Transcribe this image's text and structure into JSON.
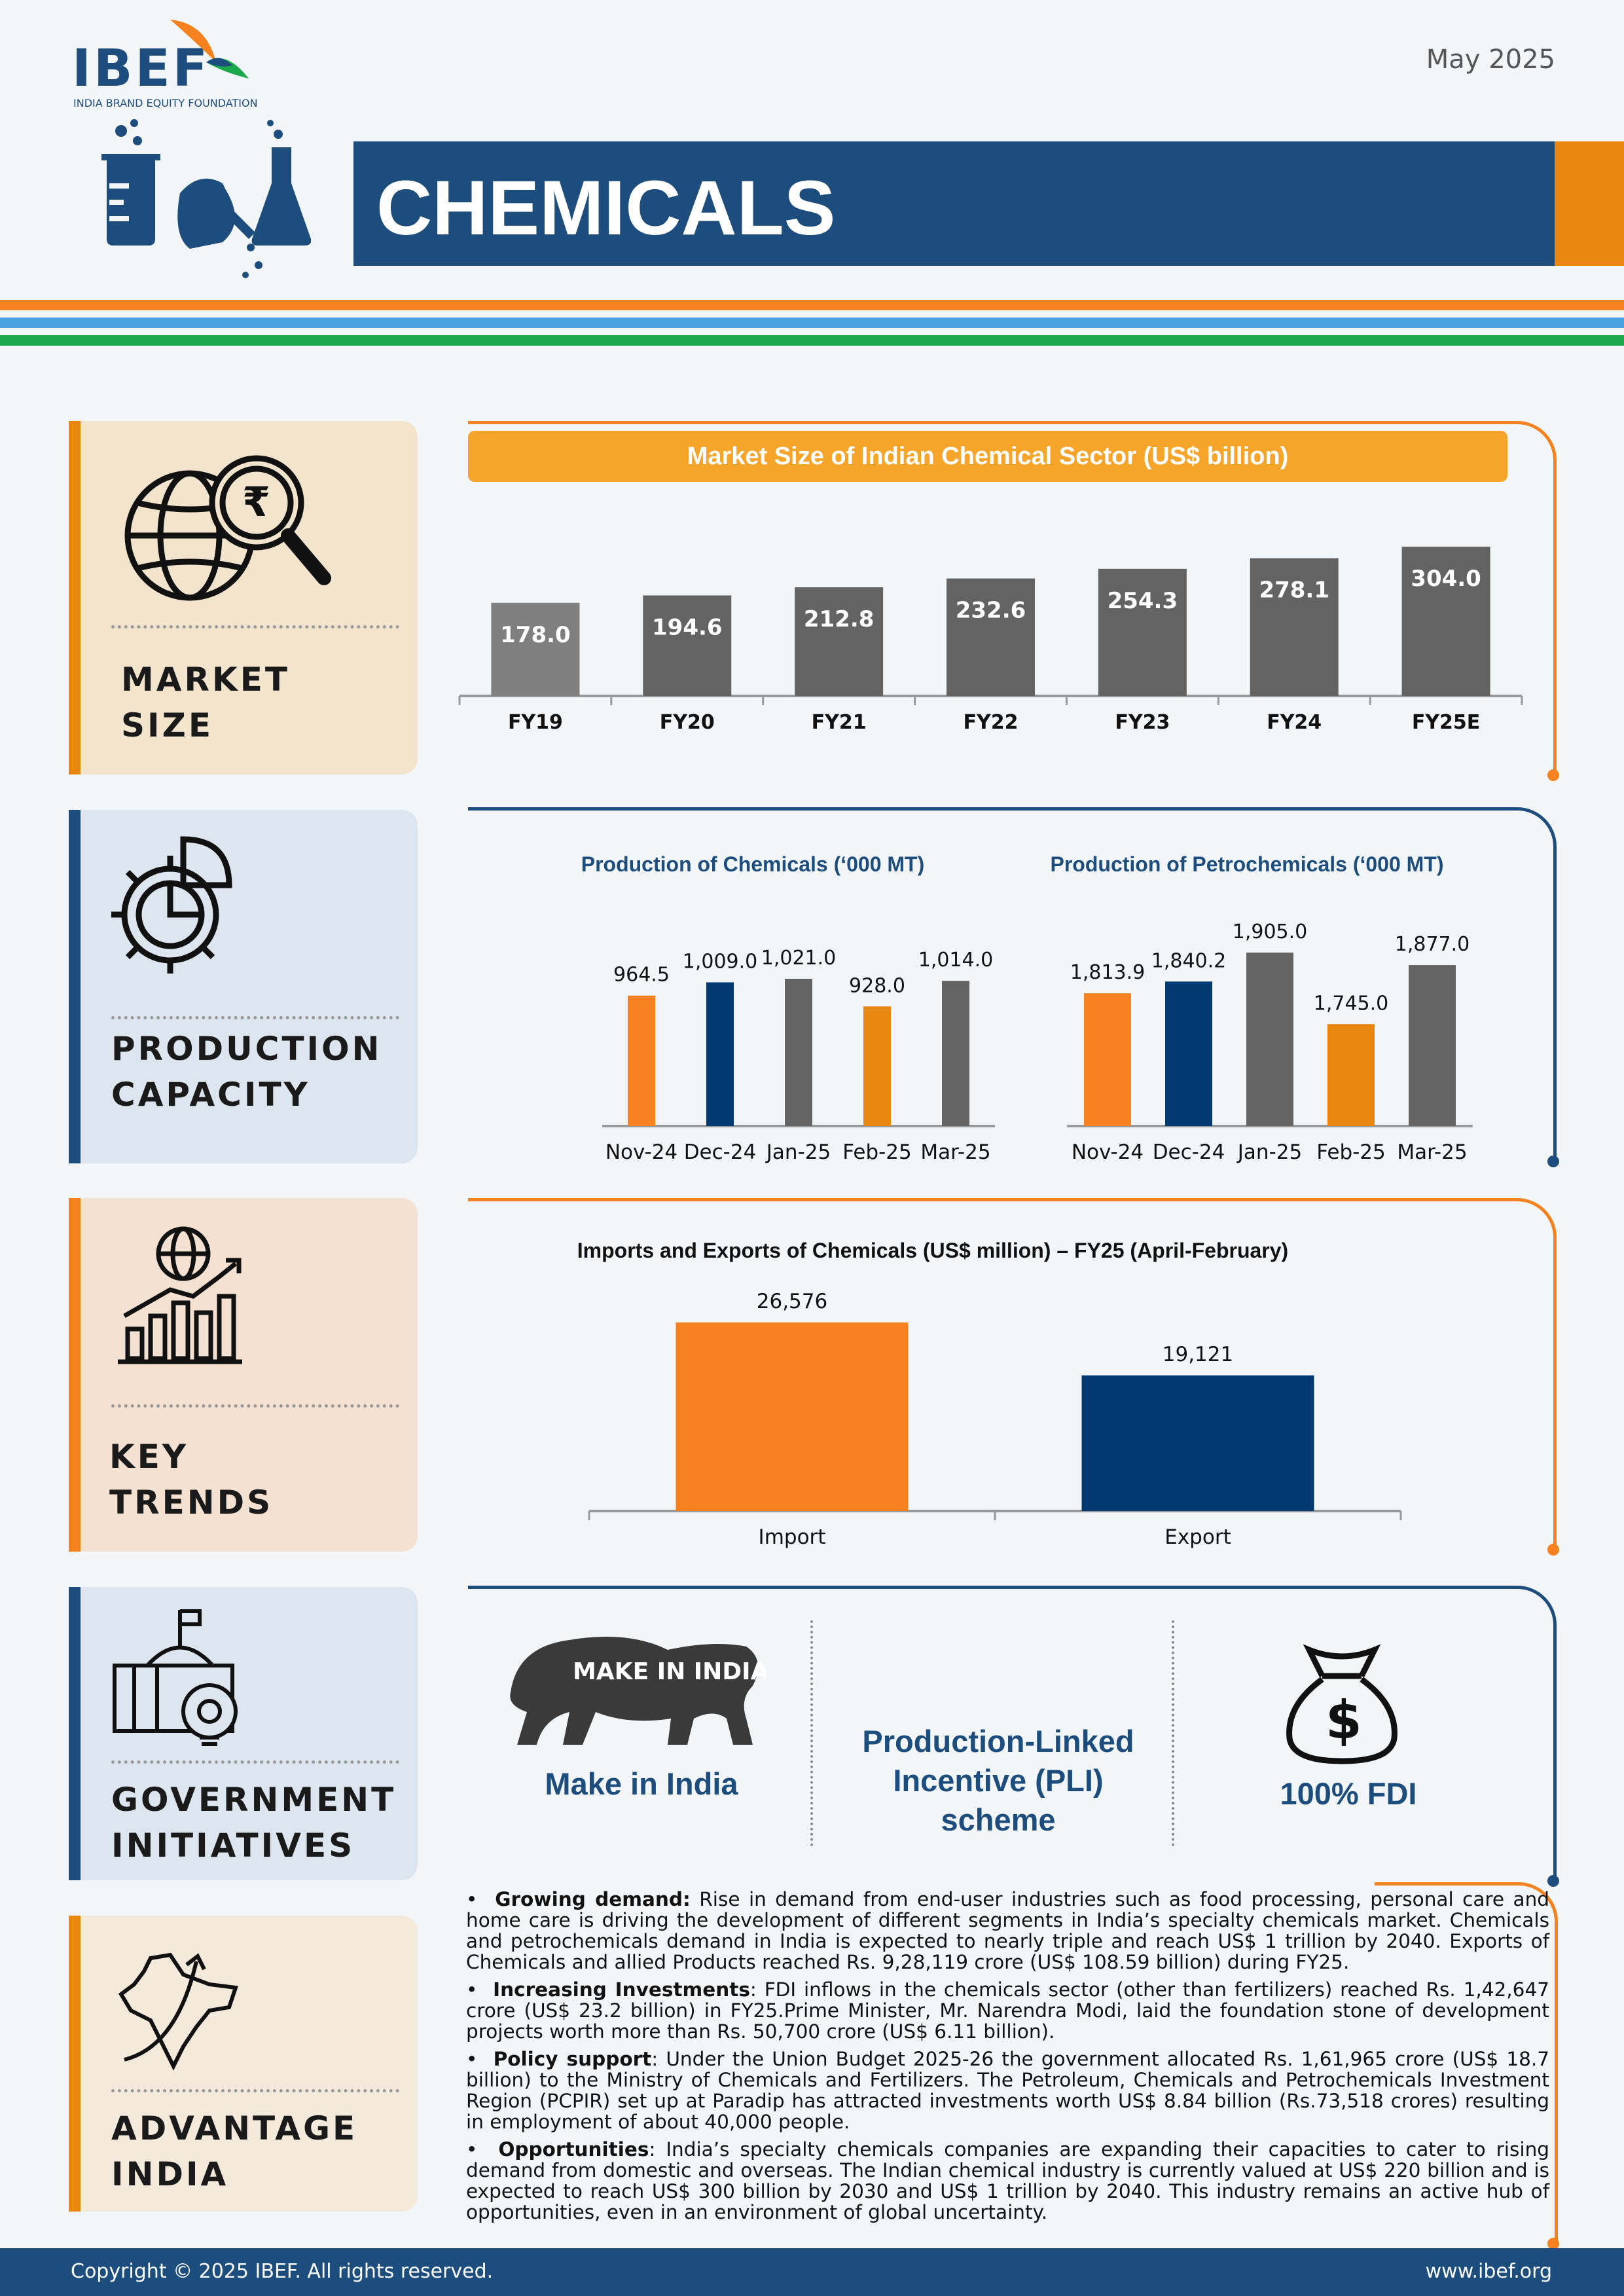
{
  "header": {
    "logo_text": "IBEF",
    "logo_subtitle": "INDIA BRAND EQUITY FOUNDATION",
    "date": "May 2025",
    "title": "CHEMICALS"
  },
  "colors": {
    "navy": "#1d4d7c",
    "orange": "#f5821f",
    "amber": "#e8860f",
    "grey": "#636363",
    "green": "#1aa84a",
    "blue": "#4aa3df"
  },
  "sidebar": {
    "market_size": [
      "MARKET",
      "SIZE"
    ],
    "production_capacity": [
      "PRODUCTION",
      "CAPACITY"
    ],
    "key_trends": [
      "KEY",
      "TRENDS"
    ],
    "government_initiatives": [
      "GOVERNMENT",
      "INITIATIVES"
    ],
    "advantage_india": [
      "ADVANTAGE",
      "INDIA"
    ]
  },
  "market_chart_title": "Market Size of Indian Chemical Sector (US$ billion)",
  "chemicals_title": "Production of Chemicals (‘000 MT)",
  "petro_title": "Production of Petrochemicals (‘000 MT)",
  "trade_title": "Imports and Exports of Chemicals (US$ million) – FY25 (April-February)",
  "chart_data": [
    {
      "type": "bar",
      "title": "Market Size of Indian Chemical Sector (US$ billion)",
      "categories": [
        "FY19",
        "FY20",
        "FY21",
        "FY22",
        "FY23",
        "FY24",
        "FY25E"
      ],
      "values": [
        178.0,
        194.6,
        212.8,
        232.6,
        254.3,
        278.1,
        304.0
      ],
      "labels": [
        "178.0",
        "194.6",
        "212.8",
        "232.6",
        "254.3",
        "278.1",
        "304.0"
      ],
      "colors": [
        "#7f7f7f",
        "#636363",
        "#636363",
        "#636363",
        "#636363",
        "#636363",
        "#636363"
      ]
    },
    {
      "type": "bar",
      "title": "Production of Chemicals (‘000 MT)",
      "categories": [
        "Nov-24",
        "Dec-24",
        "Jan-25",
        "Feb-25",
        "Mar-25"
      ],
      "values": [
        964.5,
        1009.0,
        1021.0,
        928.0,
        1014.0
      ],
      "labels": [
        "964.5",
        "1,009.0",
        "1,021.0",
        "928.0",
        "1,014.0"
      ],
      "colors": [
        "#f5821f",
        "#003a70",
        "#636363",
        "#e8860f",
        "#636363"
      ]
    },
    {
      "type": "bar",
      "title": "Production of Petrochemicals (‘000 MT)",
      "categories": [
        "Nov-24",
        "Dec-24",
        "Jan-25",
        "Feb-25",
        "Mar-25"
      ],
      "values": [
        1813.9,
        1840.2,
        1905.0,
        1745.0,
        1877.0
      ],
      "labels": [
        "1,813.9",
        "1,840.2",
        "1,905.0",
        "1,745.0",
        "1,877.0"
      ],
      "colors": [
        "#f5821f",
        "#003a70",
        "#636363",
        "#e8860f",
        "#636363"
      ]
    },
    {
      "type": "bar",
      "title": "Imports and Exports of Chemicals (US$ million) – FY25 (April-February)",
      "categories": [
        "Import",
        "Export"
      ],
      "values": [
        26576,
        19121
      ],
      "labels": [
        "26,576",
        "19,121"
      ],
      "colors": [
        "#f5821f",
        "#003a70"
      ]
    }
  ],
  "initiatives": {
    "make_in_india_logo_text": "MAKE IN INDIA",
    "make_in_india": "Make in India",
    "pli": [
      "Production-Linked",
      "Incentive (PLI)",
      "scheme"
    ],
    "fdi": "100% FDI"
  },
  "bullets": [
    {
      "head": "Growing demand:",
      "text": " Rise in demand from end-user industries such as food processing, personal care and home care is driving the development of different segments in India’s specialty chemicals market. Chemicals and petrochemicals demand in India is expected to nearly triple and reach US$ 1 trillion by 2040. Exports of Chemicals and allied Products reached Rs. 9,28,119 crore (US$ 108.59 billion) during FY25."
    },
    {
      "head": "Increasing Investments",
      "text": ": FDI inflows in the chemicals sector (other than fertilizers) reached Rs. 1,42,647 crore (US$ 23.2 billion) in FY25.Prime Minister, Mr. Narendra Modi, laid the foundation stone of development projects worth more than Rs. 50,700 crore (US$ 6.11 billion)."
    },
    {
      "head": "Policy support",
      "text": ": Under the Union Budget 2025-26 the government allocated Rs. 1,61,965 crore (US$ 18.7 billion) to the Ministry of Chemicals and Fertilizers. The Petroleum, Chemicals and Petrochemicals Investment Region (PCPIR) set up at Paradip has attracted investments worth US$ 8.84 billion (Rs.73,518 crores) resulting in employment of about 40,000 people."
    },
    {
      "head": "Opportunities",
      "text": ": India’s specialty chemicals companies are expanding their capacities to cater to rising demand from domestic and overseas. The Indian chemical industry is currently valued at US$ 220 billion and is expected to reach US$ 300 billion by 2030 and US$ 1 trillion by 2040. This industry remains an active hub of opportunities, even in an environment of global uncertainty."
    }
  ],
  "footer": {
    "copyright": "Copyright © 2025 IBEF. All rights reserved.",
    "website": "www.ibef.org"
  }
}
